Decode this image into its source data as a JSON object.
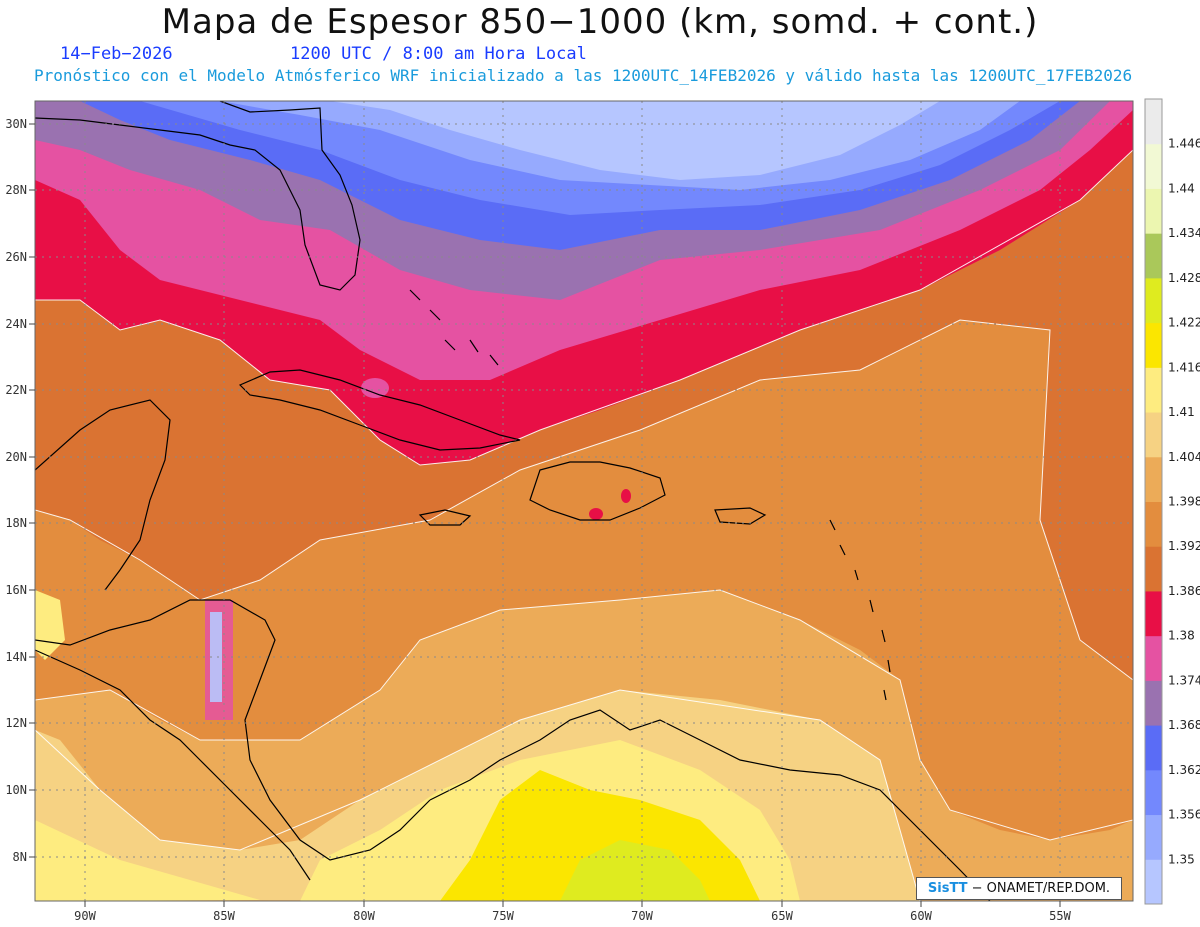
{
  "header": {
    "title": "Mapa de Espesor 850−1000 (km, somd. + cont.)",
    "date": "14−Feb−2026",
    "time": "1200 UTC / 8:00 am Hora Local",
    "forecast": "Pronóstico con el Modelo Atmósferico WRF inicializado a las 1200UTC_14FEB2026 y válido hasta las  1200UTC_17FEB2026"
  },
  "map": {
    "lat_range": [
      6.7,
      30.6
    ],
    "lon_range": [
      -91.8,
      -52.0
    ],
    "lat_ticks": [
      "8N",
      "10N",
      "12N",
      "14N",
      "16N",
      "18N",
      "20N",
      "22N",
      "24N",
      "26N",
      "28N",
      "30N"
    ],
    "lon_ticks": [
      "90W",
      "85W",
      "80W",
      "75W",
      "70W",
      "65W",
      "60W",
      "55W"
    ],
    "grid": true
  },
  "colorbar": {
    "labels": [
      "1.35",
      "1.356",
      "1.362",
      "1.368",
      "1.374",
      "1.38",
      "1.386",
      "1.392",
      "1.398",
      "1.404",
      "1.41",
      "1.416",
      "1.422",
      "1.428",
      "1.434",
      "1.44",
      "1.446"
    ],
    "colors": [
      "#b6c6ff",
      "#96aafe",
      "#7388fd",
      "#5a6cf6",
      "#9a72b0",
      "#e552a2",
      "#e80f46",
      "#da7332",
      "#e38d3e",
      "#ecab58",
      "#f6d283",
      "#feec80",
      "#fbe600",
      "#dfeb1f",
      "#aac85a",
      "#ecf6b0",
      "#f2f9d4",
      "#ebebeb"
    ]
  },
  "credit": {
    "brand": "SisTT",
    "text": "− ONAMET/REP.DOM."
  }
}
